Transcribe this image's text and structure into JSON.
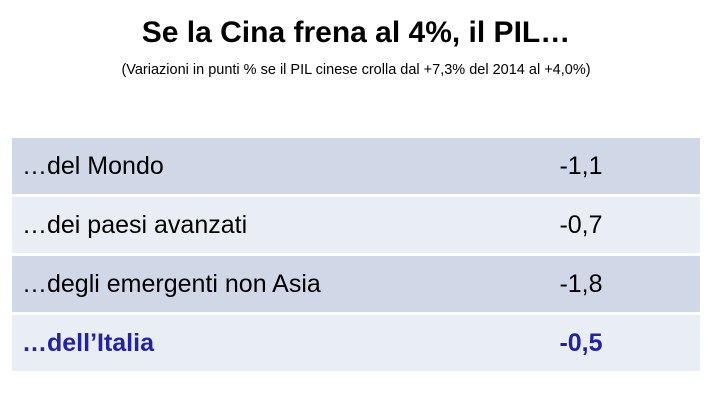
{
  "header": {
    "title": "Se la Cina frena al 4%, il PIL…",
    "subtitle": "(Variazioni in punti % se il PIL cinese crolla dal +7,3% del 2014 al +4,0%)"
  },
  "table": {
    "rows": [
      [
        "…del Mondo",
        "-1,1"
      ],
      [
        "…dei paesi avanzati",
        "-0,7"
      ],
      [
        "…degli emergenti non Asia",
        "-1,8"
      ],
      [
        "…dell’Italia",
        "-0,5"
      ]
    ]
  }
}
